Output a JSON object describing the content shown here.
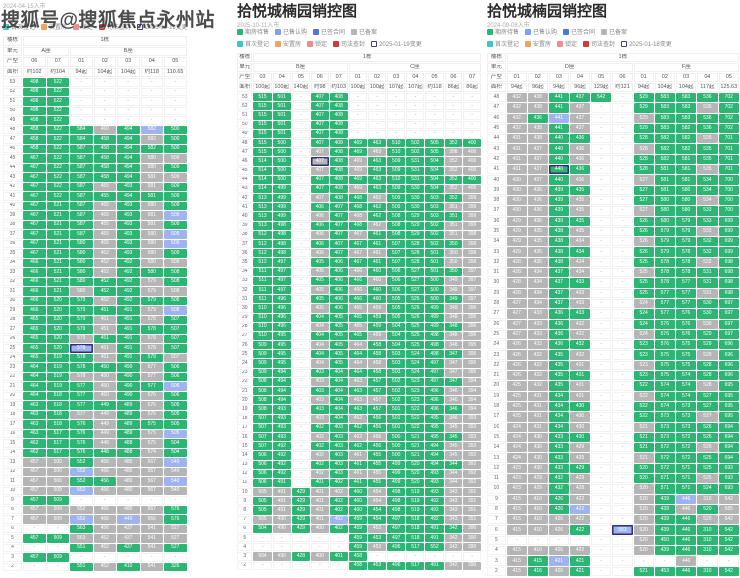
{
  "watermark": "搜狐号@搜狐焦点永州站",
  "colors": {
    "green": "#2cb573",
    "lightblue": "#7da2ee",
    "blue": "#4f78d9",
    "gray": "#b5b5b5",
    "teal": "#3ec6c0",
    "orange": "#f0a35e",
    "pink": "#f08c8c",
    "red": "#cf3a3a",
    "outline": "#4a3f8f"
  },
  "cell_status_legend": {
    "g": "期房待售(绿)",
    "a": "已备案(灰)",
    "b": "已售认购/锁定(蓝)",
    "n": "-",
    "uppercase": "变更标记(深色描边)"
  },
  "chart_data": [
    {
      "type": "table",
      "title": "",
      "subtitle": "2024-04-15入市",
      "legend": [
        [
          {
            "label": "首次登记",
            "color": "teal"
          },
          {
            "label": "安置房",
            "color": "orange"
          },
          {
            "label": "锁定",
            "color": "pink"
          },
          {
            "label": "司法查封",
            "color": "red"
          },
          {
            "label": "2025-01-19变更",
            "color": "outline"
          }
        ]
      ],
      "header": {
        "row_labels": [
          "楼栋",
          "单元",
          "产型",
          "面积"
        ],
        "building": "1栋",
        "units": [
          {
            "name": "A座",
            "span": 2
          },
          {
            "name": "B座",
            "span": 5
          }
        ],
        "types": [
          "06",
          "07",
          "01",
          "02",
          "03",
          "04",
          "05"
        ],
        "areas": [
          "约102",
          "约104",
          "94起",
          "104起",
          "104起",
          "约118",
          "110.65"
        ]
      },
      "rows": [
        "53|g498 g522 n n n n n",
        "52|g498 g522 n n n n n",
        "51|g498 g522 n n n n n",
        "50|g498 g522 n n n n n",
        "49|g498 g522 n n n n n",
        "48|g458 g522 g584 a460 g494 b582 g500",
        "47|g458 g522 g584 g458 g494 a582 g500",
        "46|g458 g522 g587 g458 g494 g582 g500",
        "45|g467 g522 g587 g458 g494 a580 a509",
        "44|g467 g522 g587 g458 g494 a580 g509",
        "43|g467 g522 g587 g458 g494 a581 a509",
        "42|g467 g522 g587 a455 g493 a581 g509",
        "41|g467 g522 g587 g455 g494 g581 g509",
        "40|g467 g521 g587 a455 g493 a580 g509",
        "39|g467 g521 g587 a455 g493 a581 b509",
        "38|g467 g521 g587 a455 g493 a581 g509",
        "37|g467 g521 g587 a455 g493 a580 b509",
        "36|g467 g521 g580 a455 g493 a580 b509",
        "35|g467 g521 g580 a452 g493 a580 g509",
        "34|g466 g521 g580 a452 g492 a580 a508",
        "33|g466 g521 g580 a452 g492 g580 g508",
        "32|g466 g521 g580 g452 g492 a579 g508",
        "31|g466 g521 a580 g452 g492 a579 a508",
        "30|g466 g520 g579 a452 g492 g579 g508",
        "29|g466 g520 g579 g451 g491 a579 b508",
        "28|g465 g520 g579 a451 g491 a578 g507",
        "27|g465 g520 g579 a451 g491 g578 g507",
        "26|g465 g520 a579 g451 g491 a578 g507",
        "25|g465 g520 B578 a451 g491 a578 g507",
        "24|g465 g519 g578 a451 g491 g578 a507",
        "23|g464 g519 g578 g450 g490 a577 g506",
        "22|g464 g519 a578 a450 g490 a577 g506",
        "21|g464 g519 g577 a450 g490 g577 b506",
        "20|g464 g518 g577 a450 g490 a576 g506",
        "19|g463 g518 g577 g449 g489 a576 g505",
        "18|g463 g518 a577 a449 g489 a576 g505",
        "17|g463 g518 g576 a449 g489 g575 g505",
        "16|g463 g517 g576 a449 g489 a575 b505",
        "15|g462 g517 g576 a448 g488 a575 g504",
        "14|g462 g517 g576 g448 g488 a574 g504",
        "13|a457 a500 g552 a456 a480 a567 b540",
        "12|a457 a500 b552 a456 a480 a567 a540",
        "11|a457 a500 g552 g456 a480 a567 b540",
        "10|a457 a509 b552 a456 a480 a567 a540",
        "9|g457 g509 n n n n n",
        "8|a457 a509 a552 a456 a480 a567 g576",
        "7|a457 a509 b552 a456 b440 a566 g576",
        "6|n n g563 a456 a437 a541 a527",
        "5|g457 g509 a563 a452 a437 a541 a527",
        "4|n n g551 a452 g437 a541 g527",
        "3|g457 g509 n n n n n",
        "2|n n g551 a452 g410 a541 g326"
      ]
    },
    {
      "type": "table",
      "title": "拾悦城楠园销控图",
      "subtitle": "2025-10-11入市",
      "legend": [
        [
          {
            "label": "期房待售",
            "color": "green"
          },
          {
            "label": "已售认购",
            "color": "lightblue"
          },
          {
            "label": "已签合同",
            "color": "blue"
          },
          {
            "label": "已备案",
            "color": "gray"
          }
        ],
        [
          {
            "label": "首次登记",
            "color": "teal"
          },
          {
            "label": "安置房",
            "color": "orange"
          },
          {
            "label": "锁定",
            "color": "pink"
          },
          {
            "label": "司法查封",
            "color": "red"
          },
          {
            "label": "2025-01-19变更",
            "color": "outline"
          }
        ]
      ],
      "header": {
        "row_labels": [
          "楼栋",
          "单元",
          "产型",
          "面积"
        ],
        "building": "1栋",
        "units": [
          {
            "name": "B座",
            "span": 5
          },
          {
            "name": "C座",
            "span": 7
          }
        ],
        "types": [
          "03",
          "04",
          "05",
          "06",
          "07",
          "01",
          "02",
          "03",
          "04",
          "05",
          "06",
          "07"
        ],
        "areas": [
          "100起",
          "100起",
          "140起",
          "约98",
          "约103",
          "100起",
          "100起",
          "107起",
          "107起",
          "约118",
          "86起",
          "86起"
        ]
      },
      "rows": [
        "53|g515 g501 n g407 g408 n n n n n n n",
        "52|g515 g501 n g407 g408 n n n n n n n",
        "51|g515 g501 n g407 g408 n n n n n n n",
        "50|g515 g501 n g407 g408 n n n n n n n",
        "49|g515 g501 n g407 g408 n n n n n n n",
        "48|g515 g500 n g407 g408 g469 g463 g510 g502 g505 g352 g400",
        "47|g515 g500 n a407 g408 g469 a463 g510 g502 g505 a398 a400",
        "46|g514 g500 n A407 g408 a469 g463 g509 g531 g504 a352 a400",
        "45|g514 g500 n a407 g408 a469 g463 g509 g531 g504 a352 a400",
        "44|g514 g500 n g407 g408 g469 g463 g510 g531 g504 g352 g400",
        "43|g514 g499 n g407 g408 a469 g463 g509 g530 g504 a352 a400",
        "42|g513 g499 n a407 g408 g468 a462 g509 g530 g503 g352 a399",
        "41|g513 g499 n g406 g407 g468 g462 g509 g530 g503 a351 a399",
        "40|g513 g499 n a406 g407 a468 g462 g508 g529 g503 g351 a399",
        "39|g513 g498 n g406 g407 g468 a462 g508 g529 g502 a351 a399",
        "38|g512 g498 n a406 g407 a467 g461 g508 g529 g502 a351 a398",
        "37|g512 g498 n g406 g407 g467 g461 g507 g528 g502 g350 a398",
        "36|g512 g498 n a406 g407 a467 a461 g507 g528 g501 a350 a398",
        "35|g512 g497 n g405 g406 g467 g461 g507 g528 g501 a350 a398",
        "34|g511 g497 n a405 g406 a466 g460 g506 g527 g501 g350 a397",
        "33|g511 g497 n g405 g406 g466 a460 g506 g527 g500 a349 a397",
        "32|g511 g497 n a405 g406 a466 g460 g506 g527 g500 a349 a397",
        "31|g511 g496 n g405 g406 g466 g460 g505 g526 g500 g349 a397",
        "30|g510 g496 n a405 g406 a465 a459 g505 g526 g499 a349 a396",
        "29|g510 g496 n g404 g405 g465 g459 g505 g526 g499 a348 a396",
        "28|g510 g496 n a404 g405 a465 g459 g504 g525 g499 g348 a396",
        "27|g510 g495 n g404 g405 g465 a459 g504 g525 g498 a348 a396",
        "26|g509 g495 n a404 g405 a464 g458 g504 g525 g498 a348 a395",
        "25|g509 g495 n g404 g405 g464 g458 g503 g524 g498 g347 a395",
        "24|g509 g495 n a404 g405 a464 a458 g503 g524 g497 a347 a395",
        "23|g509 g494 n g403 g404 g464 g458 g503 g524 g497 a347 a395",
        "22|g508 g494 n a403 g404 a463 g457 g502 g523 g497 g347 a394",
        "21|g508 g494 n g403 g404 g463 g457 g502 g523 g496 a346 a394",
        "20|g508 g494 n a403 g404 a463 a457 g502 g523 g496 a346 a394",
        "19|g508 g493 n g403 g404 g463 g457 g501 g522 g496 g346 a394",
        "18|g507 g493 n a403 g404 a462 g456 g501 g522 g495 a346 a393",
        "17|g507 g493 n g402 g403 g462 g456 g501 g522 g495 a345 a393",
        "16|g507 g493 n a402 g403 a462 a456 g500 g521 g495 g345 a393",
        "15|g507 g492 n g402 g403 g462 g456 g500 g521 g494 a345 a393",
        "14|g506 g492 n a402 g403 a461 g455 g500 g521 g494 a345 a392",
        "13|g506 g492 n g402 g403 g461 g455 g499 g520 g494 g344 a392",
        "12|g506 g492 n a402 g403 a461 a455 g499 g520 g493 a344 a392",
        "11|g506 g491 n g401 g402 g461 g455 g499 g520 g493 a344 a392",
        "10|a505 a491 g429 a401 a402 g460 a454 g498 g519 g493 a343 a391",
        "9|g505 a491 g429 a401 g402 g460 a454 g498 g519 g492 a343 a391",
        "8|g505 a491 g429 a401 g402 g460 g454 g498 g519 g492 a343 a391",
        "7|a505 a490 g429 a401 b402 g459 g454 g497 g518 g492 a343 a391",
        "6|g504 a490 g429 a400 g402 g459 a453 g497 g518 g491 g342 a390",
        "5|n n n n n g459 g453 g497 g518 g491 a342 a390",
        "4|n n n n n g459 a453 g496 g517 g552 a342 a390",
        "3|a504 a490 g428 a400 g401 g458 n n n n n n",
        "2|n n n n n g458 g453 g496 g517 g491 a342 a390"
      ]
    },
    {
      "type": "table",
      "title": "拾悦城楠园销控图",
      "subtitle": "2024-09-08入市",
      "legend": [
        [
          {
            "label": "期房待售",
            "color": "green"
          },
          {
            "label": "已售认购",
            "color": "lightblue"
          },
          {
            "label": "已签合同",
            "color": "blue"
          },
          {
            "label": "已备案",
            "color": "gray"
          }
        ],
        [
          {
            "label": "首次登记",
            "color": "teal"
          },
          {
            "label": "安置房",
            "color": "orange"
          },
          {
            "label": "锁定",
            "color": "pink"
          },
          {
            "label": "司法查封",
            "color": "red"
          },
          {
            "label": "2025-01-18变更",
            "color": "outline"
          }
        ]
      ],
      "header": {
        "row_labels": [
          "楼栋",
          "单元",
          "产型",
          "面积"
        ],
        "building": "1栋",
        "units": [
          {
            "name": "D座",
            "span": 6
          },
          {
            "name": "F座",
            "span": 5
          }
        ],
        "types": [
          "01",
          "02",
          "03",
          "04",
          "05",
          "06",
          "01",
          "02",
          "03",
          "04",
          "05"
        ],
        "areas": [
          "94起",
          "96起",
          "94起",
          "96起",
          "129起",
          "约121",
          "94起",
          "104起",
          "104起",
          "117起",
          "125.63"
        ]
      },
      "rows": [
        "48|a432 a438 g441 g437 g542 n g529 g583 g583 g536 g702",
        "47|a432 a438 g441 a437 n n g529 g583 g583 a536 g702",
        "46|a432 g436 b441 a437 n n a529 g583 g583 g536 g702",
        "45|a432 a438 g441 a437 n n g529 g583 g582 g536 g702",
        "44|a431 a438 g440 g436 n n g528 g582 g582 a535 g701",
        "43|a431 a437 g440 a436 n n a528 g582 g582 g535 g701",
        "42|a431 a437 g440 a436 n n g528 g582 g581 g535 g701",
        "41|a431 a437 G440 g436 n n g528 g581 g581 a535 g701",
        "40|a430 a437 g440 a436 n n a527 g581 g581 g534 g700",
        "39|a430 a436 g439 g435 n n g527 g581 g580 g534 g700",
        "38|a430 a436 g439 a435 n n g527 g580 g580 a534 g700",
        "37|a430 a436 g439 a435 n n a527 g580 g580 g533 g700",
        "36|a429 a436 g439 g435 n n g526 g580 g579 g533 g699",
        "35|a429 a435 g438 a435 n n g526 g579 g579 a533 g699",
        "34|a429 a435 g438 a434 n n a526 g579 g579 g532 g699",
        "33|a429 a435 g438 g434 n n g526 g579 g578 g532 g699",
        "32|a428 a435 g438 a434 n n g525 g578 g578 a532 g698",
        "31|a428 a434 g437 a434 n n a525 g578 g578 g531 g698",
        "30|a428 a434 g437 g433 n n g525 g578 g577 g531 g698",
        "29|a428 a434 g437 a433 n n g525 g577 g577 a531 g698",
        "28|a427 a434 g437 a433 n n a524 g577 g577 g530 g697",
        "27|a427 a433 g436 g433 n n g524 g577 g576 g530 g697",
        "26|a427 a433 g436 a432 n n g524 g576 g576 a530 g697",
        "25|a427 a433 g436 a432 n n a524 g576 g576 g529 g697",
        "24|a426 a433 g436 g432 n n g523 g576 g575 g529 g696",
        "23|a426 a432 g435 a432 n n g523 g575 g575 a529 g696",
        "22|a426 a432 g435 a431 n n a523 g575 g575 g528 g696",
        "21|a426 a432 g435 g431 n n g523 g575 g574 g528 g696",
        "20|a425 a432 g435 a431 n n g522 g574 g574 a528 g695",
        "19|a425 a431 g434 a431 n n a522 g574 g574 g527 g695",
        "18|a425 a431 g434 g430 n n g522 g574 g573 g527 g695",
        "17|a425 a431 g434 a430 n n g522 g573 g573 a527 g695",
        "16|a424 a431 g434 a430 n n a521 g573 g573 g526 g694",
        "15|a424 a430 g433 g430 n n g521 g573 g572 g526 g694",
        "14|a424 a430 g433 a429 n n g521 g572 g572 a526 g694",
        "13|a424 a430 g433 a429 n n a521 g572 g572 g525 g694",
        "12|a423 a430 g433 g429 n n g520 g572 g571 g525 g693",
        "11|a423 a429 g432 a429 n n g520 g571 g571 a525 g693",
        "10|a423 a429 g432 a428 n n a520 g571 g571 g524 g693",
        "9|a415 a410 g426 a422 n n a520 g439 b446 a310 a542",
        "8|a415 a410 g426 b422 n n a520 g439 a446 g520 a585",
        "7|a415 a410 a426 a422 n n a520 g439 g446 a520 a542",
        "6|a415 a410 a426 g422 n B583 a520 g439 g446 g310 g542",
        "5|n n n n n n a520 g450 g446 g310 g542",
        "4|a415 a410 a426 a422 n n a520 g439 g446 g310 g542",
        "3|a415 g415 b421 g421 n n n n a446 n n",
        "2|a415 g416 a426 g421 n n g521 g453 g446 g310 g542"
      ]
    }
  ]
}
